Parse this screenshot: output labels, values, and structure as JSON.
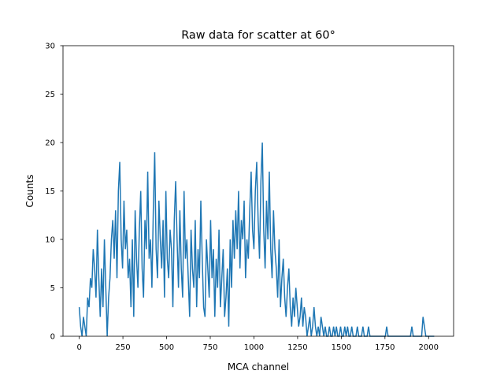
{
  "chart_data": {
    "type": "line",
    "title": "Raw data for scatter at 60°",
    "xlabel": "MCA channel",
    "ylabel": "Counts",
    "xlim": [
      -93,
      2143
    ],
    "ylim": [
      0,
      30
    ],
    "grid": false,
    "x_ticks": [
      0,
      250,
      500,
      750,
      1000,
      1250,
      1500,
      1750,
      2000
    ],
    "x_tick_labels": [
      "0",
      "250",
      "500",
      "750",
      "1000",
      "1250",
      "1500",
      "1750",
      "2000"
    ],
    "y_ticks": [
      0,
      5,
      10,
      15,
      20,
      25,
      30
    ],
    "y_tick_labels": [
      "0",
      "5",
      "10",
      "15",
      "20",
      "25",
      "30"
    ],
    "colors": {
      "line": "#1f77b4",
      "axes": "#000000",
      "background": "#ffffff"
    },
    "series": [
      {
        "x_start": 0,
        "x_step": 8,
        "values": [
          3,
          1,
          0,
          2,
          1,
          0,
          4,
          3,
          6,
          5,
          9,
          7,
          4,
          11,
          6,
          2,
          7,
          3,
          10,
          5,
          0,
          4,
          6,
          10,
          12,
          8,
          13,
          6,
          15,
          18,
          10,
          7,
          14,
          9,
          11,
          6,
          8,
          3,
          10,
          2,
          13,
          8,
          5,
          11,
          15,
          7,
          4,
          12,
          9,
          17,
          8,
          10,
          5,
          13,
          19,
          9,
          6,
          14,
          10,
          7,
          12,
          4,
          15,
          8,
          6,
          11,
          9,
          3,
          12,
          16,
          10,
          5,
          13,
          7,
          4,
          15,
          8,
          10,
          6,
          2,
          11,
          7,
          5,
          12,
          3,
          9,
          6,
          14,
          8,
          3,
          2,
          10,
          7,
          4,
          12,
          6,
          9,
          2,
          8,
          5,
          11,
          3,
          6,
          9,
          2,
          4,
          7,
          1,
          10,
          5,
          12,
          8,
          13,
          9,
          15,
          7,
          12,
          10,
          14,
          6,
          10,
          8,
          13,
          17,
          11,
          9,
          15,
          18,
          12,
          8,
          16,
          20,
          11,
          7,
          14,
          10,
          17,
          9,
          6,
          13,
          9,
          7,
          4,
          10,
          3,
          6,
          8,
          4,
          2,
          5,
          7,
          3,
          1,
          4,
          2,
          5,
          3,
          1,
          2,
          4,
          1,
          3,
          2,
          0,
          1,
          2,
          0,
          1,
          3,
          1,
          0,
          1,
          0,
          2,
          1,
          0,
          1,
          0,
          0,
          1,
          0,
          0,
          1,
          0,
          1,
          0,
          0,
          1,
          0,
          0,
          1,
          0,
          1,
          0,
          0,
          1,
          0,
          0,
          0,
          1,
          0,
          0,
          0,
          1,
          0,
          0,
          0,
          1,
          0,
          0,
          0,
          0,
          0,
          0,
          0,
          0,
          0,
          0,
          0,
          0,
          1,
          0,
          0,
          0,
          0,
          0,
          0,
          0,
          0,
          0,
          0,
          0,
          0,
          0,
          0,
          0,
          0,
          0,
          1,
          0,
          0,
          0,
          0,
          0,
          0,
          0,
          2,
          1,
          0,
          0,
          0,
          0,
          0,
          0,
          0
        ]
      }
    ]
  }
}
